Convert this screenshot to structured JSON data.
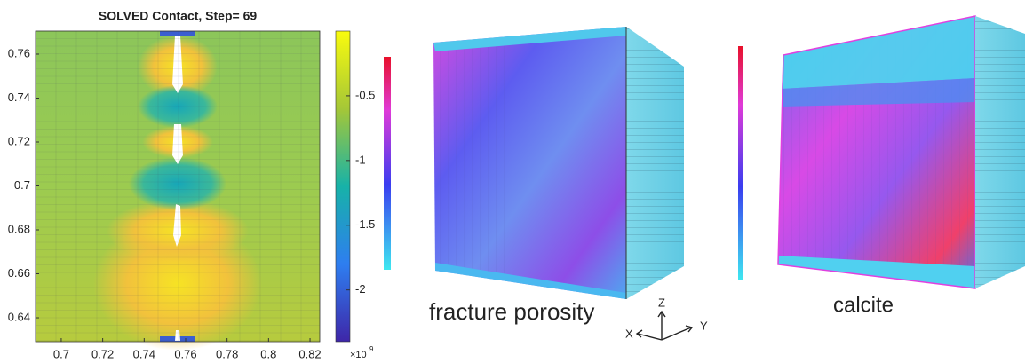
{
  "chart_data": [
    {
      "type": "heatmap",
      "title": "SOLVED Contact, Step= 69",
      "xlim": [
        0.6876,
        0.8247
      ],
      "xticks": [
        0.7,
        0.72,
        0.74,
        0.76,
        0.78,
        0.8,
        0.82
      ],
      "ylim": [
        0.6291,
        0.7705
      ],
      "yticks": [
        0.64,
        0.66,
        0.68,
        0.7,
        0.72,
        0.74,
        0.76
      ],
      "colorbar": {
        "clim": [
          -2.4,
          0
        ],
        "ticks": [
          -2,
          -1.5,
          -1,
          -0.5
        ],
        "multiplier": "×10",
        "exponent": "9"
      }
    },
    {
      "type": "3d-render",
      "label": "fracture porosity",
      "axes": [
        "X",
        "Y",
        "Z"
      ]
    },
    {
      "type": "3d-render",
      "label": "calcite"
    }
  ]
}
